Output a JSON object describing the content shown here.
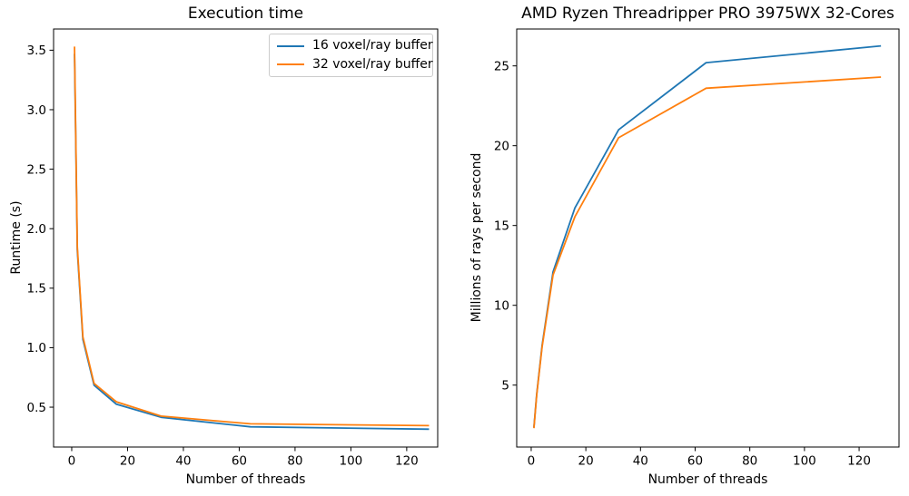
{
  "figure": {
    "background": "#ffffff",
    "text_color": "#000000",
    "spine_color": "#000000"
  },
  "chart_data": [
    {
      "type": "line",
      "title": "Execution time",
      "xlabel": "Number of threads",
      "ylabel": "Runtime (s)",
      "x": [
        1,
        2,
        4,
        8,
        16,
        32,
        64,
        128
      ],
      "series": [
        {
          "name": "16 voxel/ray buffer",
          "color": "#1f77b4",
          "values": [
            3.47,
            1.82,
            1.07,
            0.685,
            0.525,
            0.415,
            0.335,
            0.315
          ]
        },
        {
          "name": "32 voxel/ray buffer",
          "color": "#ff7f0e",
          "values": [
            3.53,
            1.85,
            1.09,
            0.7,
            0.545,
            0.425,
            0.36,
            0.345
          ]
        }
      ],
      "xlim": [
        -6.5,
        131.1
      ],
      "ylim": [
        0.165,
        3.678
      ],
      "xticks": [
        0,
        20,
        40,
        60,
        80,
        100,
        120
      ],
      "xtick_labels": [
        "0",
        "20",
        "40",
        "60",
        "80",
        "100",
        "120"
      ],
      "yticks": [
        0.5,
        1.0,
        1.5,
        2.0,
        2.5,
        3.0,
        3.5
      ],
      "ytick_labels": [
        "0.5",
        "1.0",
        "1.5",
        "2.0",
        "2.5",
        "3.0",
        "3.5"
      ],
      "grid": false,
      "legend": {
        "visible": true,
        "position": "upper right",
        "entries": [
          "16 voxel/ray buffer",
          "32 voxel/ray buffer"
        ]
      }
    },
    {
      "type": "line",
      "title": "AMD Ryzen Threadripper PRO 3975WX 32-Cores",
      "xlabel": "Number of threads",
      "ylabel": "Millions of rays per second",
      "x": [
        1,
        2,
        4,
        8,
        16,
        32,
        64,
        128
      ],
      "series": [
        {
          "name": "16 voxel/ray buffer",
          "color": "#1f77b4",
          "values": [
            2.35,
            4.4,
            7.5,
            12.1,
            16.1,
            21.0,
            25.2,
            26.25
          ]
        },
        {
          "name": "32 voxel/ray buffer",
          "color": "#ff7f0e",
          "values": [
            2.3,
            4.35,
            7.4,
            11.9,
            15.55,
            20.5,
            23.6,
            24.3
          ]
        }
      ],
      "xlim": [
        -5.3,
        134.6
      ],
      "ylim": [
        1.12,
        27.31
      ],
      "xticks": [
        0,
        20,
        40,
        60,
        80,
        100,
        120
      ],
      "xtick_labels": [
        "0",
        "20",
        "40",
        "60",
        "80",
        "100",
        "120"
      ],
      "yticks": [
        5,
        10,
        15,
        20,
        25
      ],
      "ytick_labels": [
        "5",
        "10",
        "15",
        "20",
        "25"
      ],
      "grid": false,
      "legend": {
        "visible": false,
        "entries": []
      }
    }
  ]
}
